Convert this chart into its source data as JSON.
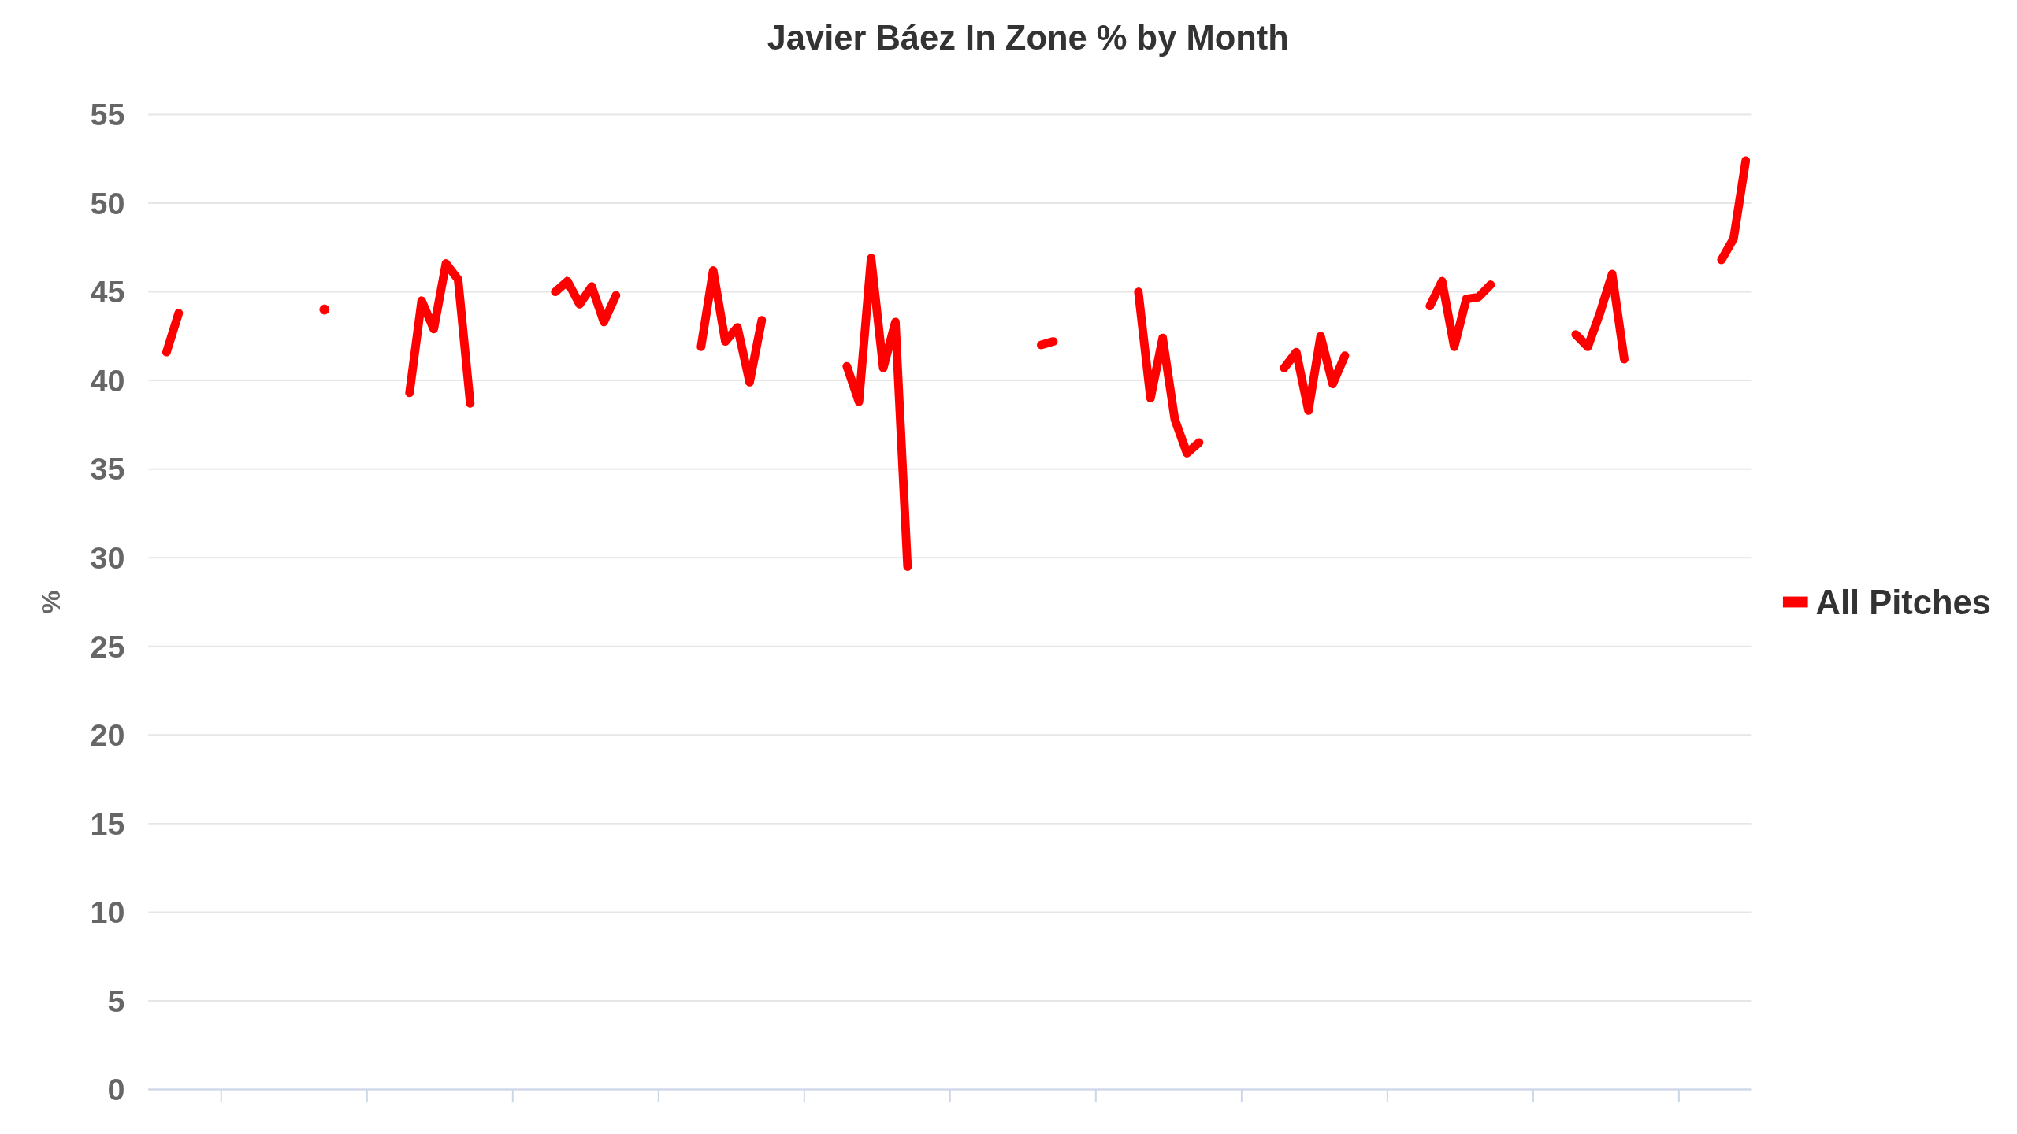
{
  "chart_data": {
    "type": "line",
    "title": "Javier Báez In Zone % by Month",
    "ylabel": "%",
    "categories": [
      null,
      null,
      null,
      null,
      null,
      null,
      null,
      null,
      null,
      null,
      null,
      null,
      null,
      null,
      null,
      null,
      null,
      null,
      null,
      null,
      null,
      null,
      null,
      null,
      null,
      null,
      null,
      null,
      null,
      null,
      null,
      null,
      null,
      null,
      null,
      null,
      null,
      null,
      null,
      null,
      null,
      null,
      null,
      null,
      null,
      null,
      null,
      null,
      null,
      null,
      null,
      null,
      null,
      null,
      null,
      null,
      null,
      null,
      null,
      null,
      null,
      null,
      null,
      null,
      null,
      null,
      null,
      null,
      null,
      null,
      null,
      null,
      null,
      null,
      null,
      null,
      null,
      null,
      null,
      null,
      null,
      null,
      null,
      null,
      null,
      null,
      null,
      null,
      null,
      null,
      null,
      null,
      null,
      null,
      null,
      null,
      null,
      null,
      null,
      null,
      null,
      null,
      null,
      null,
      null,
      null,
      null,
      null,
      null,
      null,
      null,
      null,
      null,
      null,
      null,
      null,
      null,
      null,
      null,
      null,
      null,
      null,
      null,
      null,
      null,
      null,
      null,
      null,
      null,
      null,
      null,
      null
    ],
    "series": [
      {
        "name": "All Pitches",
        "color": "#ff0000",
        "values": [
          null,
          41.6,
          43.8,
          null,
          null,
          null,
          null,
          null,
          null,
          null,
          null,
          null,
          null,
          null,
          44.0,
          null,
          null,
          null,
          null,
          null,
          null,
          39.3,
          44.5,
          42.9,
          46.6,
          45.7,
          38.7,
          null,
          null,
          null,
          null,
          null,
          null,
          45.0,
          45.6,
          44.3,
          45.3,
          43.3,
          44.8,
          null,
          null,
          null,
          null,
          null,
          null,
          41.9,
          46.2,
          42.2,
          43.0,
          39.9,
          43.4,
          null,
          null,
          null,
          null,
          null,
          null,
          40.8,
          38.8,
          46.9,
          40.7,
          43.3,
          29.5,
          null,
          null,
          null,
          null,
          null,
          null,
          null,
          null,
          null,
          null,
          42.0,
          42.2,
          null,
          null,
          null,
          null,
          null,
          null,
          45.0,
          39.0,
          42.4,
          37.8,
          35.9,
          36.5,
          null,
          null,
          null,
          null,
          null,
          null,
          40.7,
          41.6,
          38.3,
          42.5,
          39.8,
          41.4,
          null,
          null,
          null,
          null,
          null,
          null,
          44.2,
          45.6,
          41.9,
          44.6,
          44.7,
          45.4,
          null,
          null,
          null,
          null,
          null,
          null,
          42.6,
          41.9,
          43.8,
          46.0,
          41.2,
          null,
          null,
          null,
          null,
          null,
          null,
          null,
          46.8,
          48.0,
          52.4
        ]
      }
    ],
    "ylim": [
      0,
      55
    ],
    "yticks": [
      0,
      5,
      10,
      15,
      20,
      25,
      30,
      35,
      40,
      45,
      50,
      55
    ],
    "grid": "y",
    "legend": "right",
    "marker": "none",
    "line_style": "solid"
  }
}
